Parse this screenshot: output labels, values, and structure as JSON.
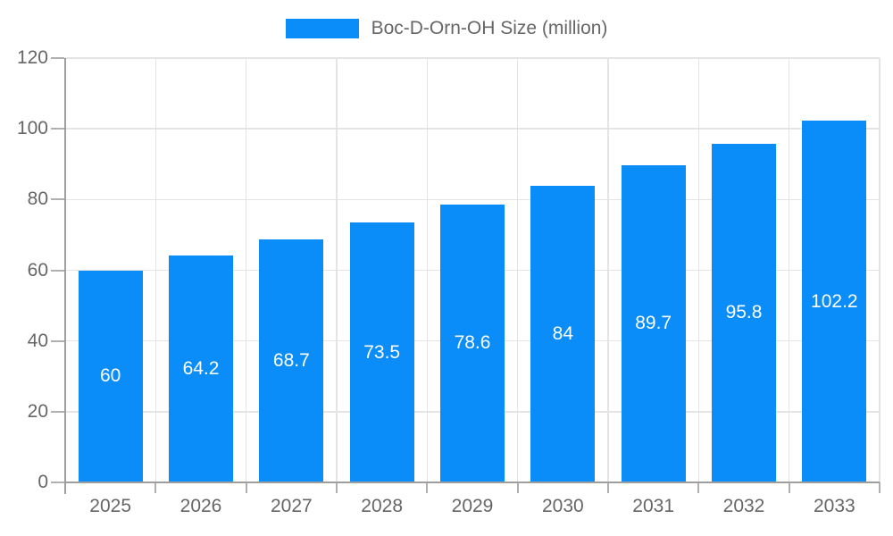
{
  "chart_data": {
    "type": "bar",
    "title": "Boc-D-Orn-OH Size (million)",
    "categories": [
      "2025",
      "2026",
      "2027",
      "2028",
      "2029",
      "2030",
      "2031",
      "2032",
      "2033"
    ],
    "values": [
      60,
      64.2,
      68.7,
      73.5,
      78.6,
      84,
      89.7,
      95.8,
      102.2
    ],
    "value_labels": [
      "60",
      "64.2",
      "68.7",
      "73.5",
      "78.6",
      "84",
      "89.7",
      "95.8",
      "102.2"
    ],
    "xlabel": "",
    "ylabel": "",
    "ylim": [
      0,
      120
    ],
    "yticks": [
      0,
      20,
      40,
      60,
      80,
      100,
      120
    ],
    "grid": true,
    "legend_position": "top-center",
    "colors": {
      "bar": "#0a8df9",
      "bar_label": "#ffffff",
      "axis_text": "#666666",
      "grid_line": "#e4e4e4",
      "axis_line": "#9e9e9e",
      "tick": "#b0b0b0",
      "background": "#ffffff"
    }
  }
}
